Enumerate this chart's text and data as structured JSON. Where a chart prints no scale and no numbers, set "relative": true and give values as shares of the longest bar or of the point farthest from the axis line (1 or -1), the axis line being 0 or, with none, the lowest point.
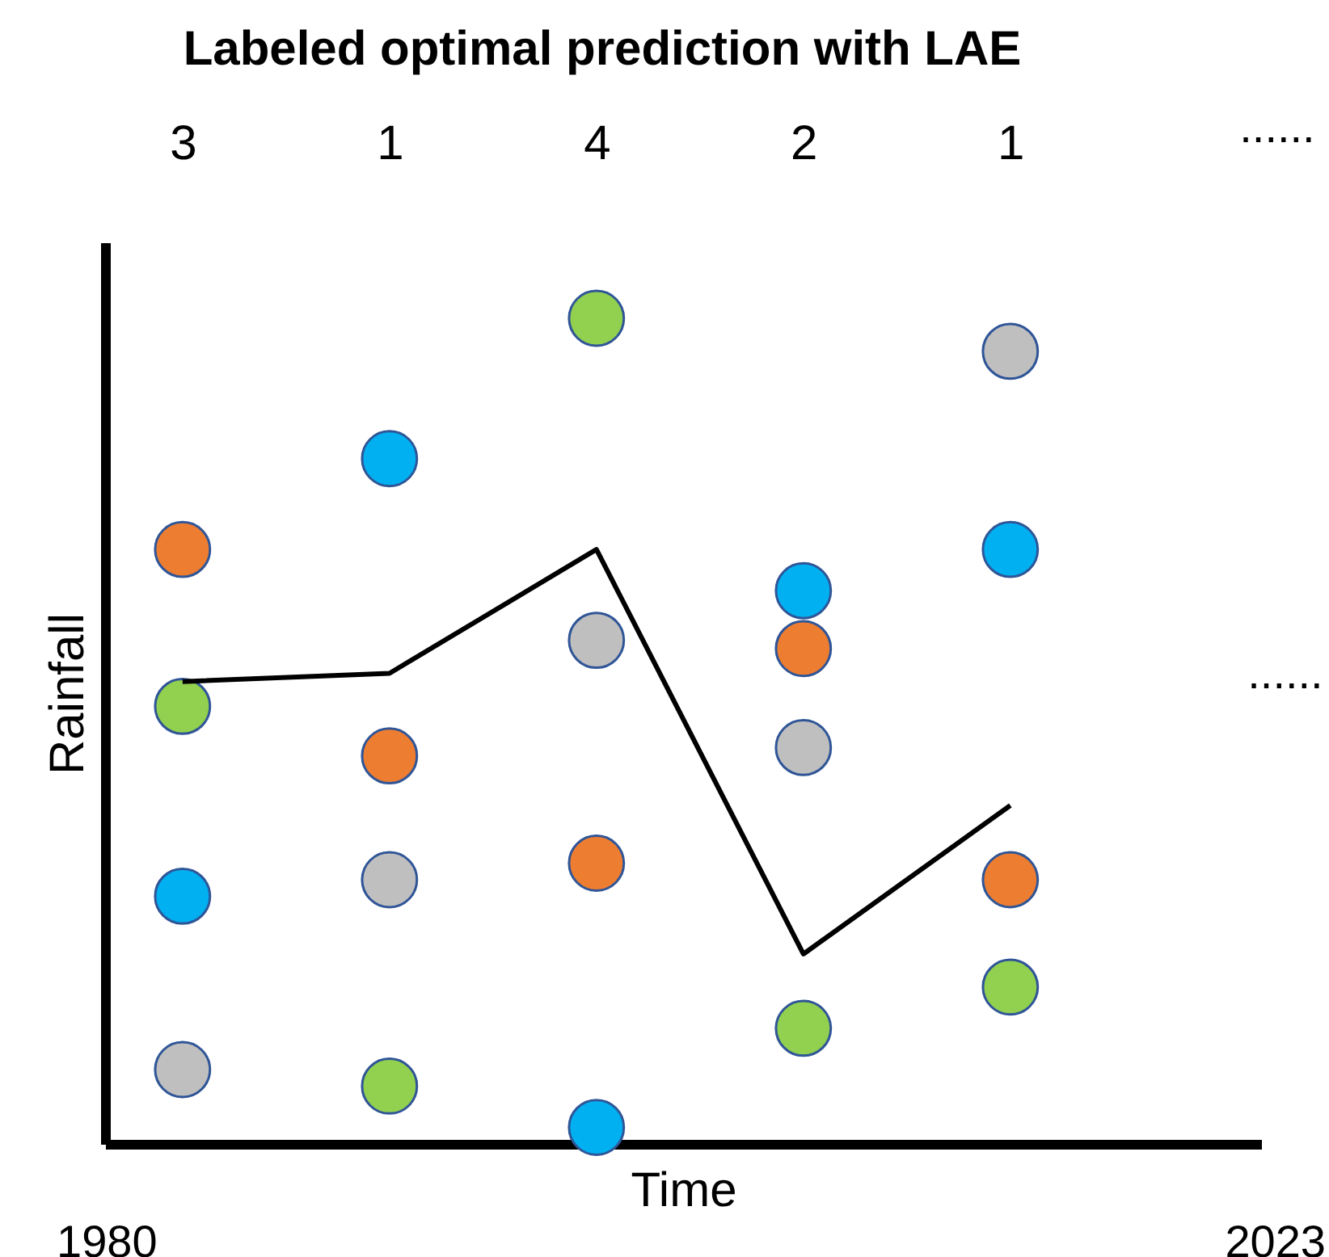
{
  "chart_data": {
    "type": "scatter",
    "title": "Labeled optimal prediction with LAE",
    "xlabel": "Time",
    "ylabel": "Rainfall",
    "relative": true,
    "marker": "circle",
    "categories": [
      "3",
      "1",
      "4",
      "2",
      "1"
    ],
    "series": [
      {
        "color": "#ed7d31",
        "values": [
          0.72,
          0.47,
          0.34,
          0.6,
          0.32
        ]
      },
      {
        "color": "#92d050",
        "values": [
          0.53,
          0.07,
          1,
          0.14,
          0.19
        ]
      },
      {
        "color": "#00b0f0",
        "values": [
          0.3,
          0.83,
          0.02,
          0.67,
          0.72
        ]
      },
      {
        "color": "#bfbfbf",
        "values": [
          0.09,
          0.32,
          0.61,
          0.48,
          0.96
        ]
      },
      {
        "type": "line",
        "marker": "none",
        "color": "#000000",
        "values": [
          0.56,
          0.57,
          0.72,
          0.23,
          0.41
        ]
      }
    ],
    "annotations": [
      "1980",
      "2023",
      "......",
      "......"
    ]
  }
}
